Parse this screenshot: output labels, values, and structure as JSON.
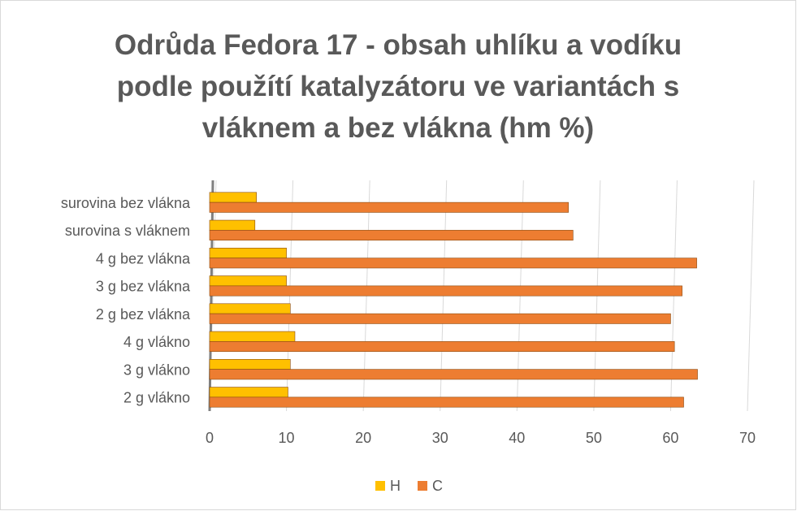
{
  "chart_data": {
    "type": "bar",
    "orientation": "horizontal",
    "title": "Odrůda Fedora 17 - obsah uhlíku a vodíku podle použítí katalyzátoru ve variantách s vláknem a bez vlákna (hm %)",
    "categories": [
      "2 g vlákno",
      "3 g vlákno",
      "4 g vlákno",
      "2 g bez vlákna",
      "3 g bez vlákna",
      "4 g bez vlákna",
      "surovina s vláknem",
      "surovina bez vlákna"
    ],
    "series": [
      {
        "name": "H",
        "color": "#ffc000",
        "values": [
          10.2,
          10.5,
          11.1,
          10.5,
          10.0,
          10.0,
          5.9,
          6.1
        ]
      },
      {
        "name": "C",
        "color": "#ed7d31",
        "values": [
          61.7,
          63.5,
          60.5,
          60.0,
          61.5,
          63.4,
          47.3,
          46.7
        ]
      }
    ],
    "xlim": [
      0,
      70
    ],
    "xticks": [
      0,
      10,
      20,
      30,
      40,
      50,
      60,
      70
    ],
    "grid": true,
    "legend": "bottom"
  }
}
